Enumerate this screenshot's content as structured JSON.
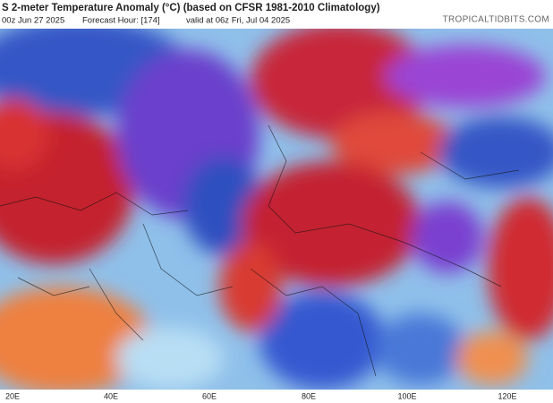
{
  "header": {
    "title": "S 2-meter Temperature Anomaly (°C) (based on CFSR 1981-2010 Climatology)",
    "subtitle": [
      "00z Jun 27 2025",
      "Forecast Hour: [174]",
      "valid at 06z Fri, Jul 04 2025"
    ],
    "source": "TROPICALTIDBITS.COM"
  },
  "axis": {
    "labels": [
      "20E",
      "40E",
      "60E",
      "80E",
      "100E",
      "120E"
    ]
  }
}
